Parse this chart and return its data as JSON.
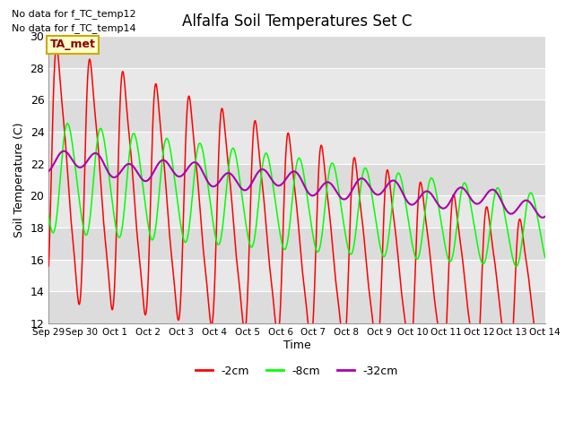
{
  "title": "Alfalfa Soil Temperatures Set C",
  "ylabel": "Soil Temperature (C)",
  "xlabel": "Time",
  "ylim": [
    12,
    30
  ],
  "no_data_text": [
    "No data for f_TC_temp12",
    "No data for f_TC_temp14"
  ],
  "ta_met_label": "TA_met",
  "xtick_labels": [
    "Sep 29",
    "Sep 30",
    "Oct 1",
    "Oct 2",
    "Oct 3",
    "Oct 4",
    "Oct 5",
    "Oct 6",
    "Oct 7",
    "Oct 8",
    "Oct 9",
    "Oct 10",
    "Oct 11",
    "Oct 12",
    "Oct 13",
    "Oct 14"
  ],
  "colors": {
    "red": "#FF0000",
    "green": "#00FF00",
    "purple": "#AA00AA",
    "bg_light": "#DCDCDC",
    "bg_dark": "#C8C8C8",
    "ta_met_bg": "#FFFFCC",
    "ta_met_border": "#CCAA00"
  },
  "legend_entries": [
    "-2cm",
    "-8cm",
    "-32cm"
  ],
  "legend_colors": [
    "#FF0000",
    "#00FF00",
    "#AA00AA"
  ],
  "ytick_bands": [
    12,
    14,
    16,
    18,
    20,
    22,
    24,
    26,
    28,
    30
  ]
}
